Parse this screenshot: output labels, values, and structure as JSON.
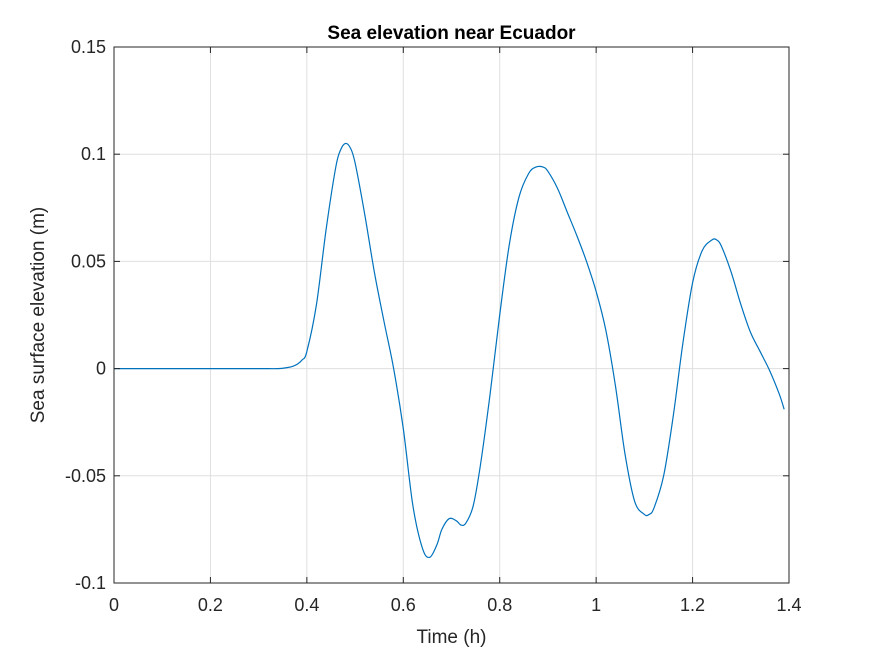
{
  "chart_data": {
    "type": "line",
    "title": "Sea elevation near Ecuador",
    "xlabel": "Time (h)",
    "ylabel": "Sea surface elevation (m)",
    "xlim": [
      0,
      1.4
    ],
    "ylim": [
      -0.1,
      0.15
    ],
    "xticks": [
      0,
      0.2,
      0.4,
      0.6,
      0.8,
      1,
      1.2,
      1.4
    ],
    "xtick_labels": [
      "0",
      "0.2",
      "0.4",
      "0.6",
      "0.8",
      "1",
      "1.2",
      "1.4"
    ],
    "yticks": [
      -0.1,
      -0.05,
      0,
      0.05,
      0.1,
      0.15
    ],
    "ytick_labels": [
      "-0.1",
      "-0.05",
      "0",
      "0.05",
      "0.1",
      "0.15"
    ],
    "grid": true,
    "box": true,
    "colors": {
      "line": "#0072BD",
      "axes": "#262626",
      "grid": "#dfdfdf"
    },
    "series": [
      {
        "x": [
          0,
          0.1,
          0.2,
          0.3,
          0.34,
          0.36,
          0.37,
          0.38,
          0.39,
          0.4,
          0.42,
          0.44,
          0.46,
          0.47,
          0.48,
          0.49,
          0.5,
          0.52,
          0.54,
          0.56,
          0.58,
          0.6,
          0.62,
          0.64,
          0.655,
          0.67,
          0.68,
          0.695,
          0.71,
          0.72,
          0.73,
          0.745,
          0.76,
          0.78,
          0.8,
          0.82,
          0.84,
          0.86,
          0.875,
          0.89,
          0.9,
          0.92,
          0.94,
          0.96,
          0.98,
          1.0,
          1.02,
          1.04,
          1.06,
          1.08,
          1.1,
          1.11,
          1.12,
          1.14,
          1.16,
          1.18,
          1.2,
          1.22,
          1.24,
          1.25,
          1.26,
          1.28,
          1.3,
          1.32,
          1.34,
          1.36,
          1.38,
          1.39
        ],
        "y": [
          0,
          0,
          0,
          0,
          0,
          0.0005,
          0.001,
          0.002,
          0.004,
          0.008,
          0.03,
          0.065,
          0.094,
          0.102,
          0.105,
          0.103,
          0.096,
          0.072,
          0.045,
          0.022,
          0.0,
          -0.028,
          -0.064,
          -0.084,
          -0.088,
          -0.082,
          -0.075,
          -0.07,
          -0.071,
          -0.073,
          -0.072,
          -0.064,
          -0.045,
          -0.012,
          0.025,
          0.058,
          0.08,
          0.091,
          0.094,
          0.094,
          0.092,
          0.084,
          0.073,
          0.062,
          0.05,
          0.036,
          0.018,
          -0.008,
          -0.04,
          -0.062,
          -0.068,
          -0.068,
          -0.065,
          -0.05,
          -0.022,
          0.012,
          0.04,
          0.055,
          0.06,
          0.06,
          0.057,
          0.045,
          0.03,
          0.017,
          0.008,
          -0.001,
          -0.012,
          -0.019
        ]
      }
    ]
  }
}
